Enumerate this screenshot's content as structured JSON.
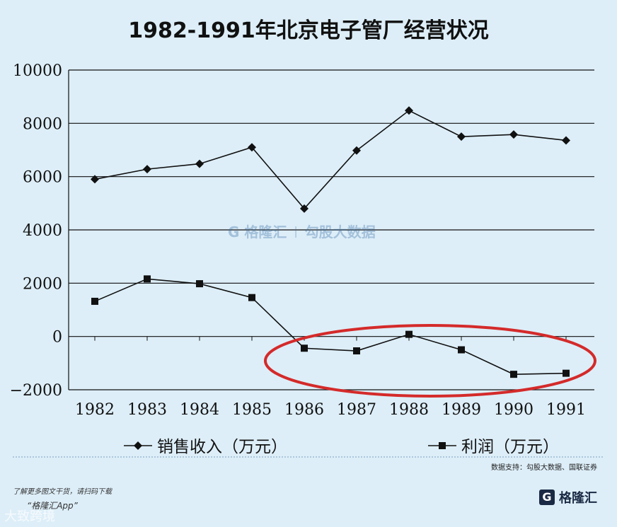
{
  "title": "1982-1991年北京电子管厂经营状况",
  "chart_data": {
    "type": "line",
    "categories": [
      "1982",
      "1983",
      "1984",
      "1985",
      "1986",
      "1987",
      "1988",
      "1989",
      "1990",
      "1991"
    ],
    "series": [
      {
        "name": "销售收入（万元）",
        "marker": "diamond",
        "values": [
          5900,
          6280,
          6480,
          7100,
          4800,
          6980,
          8480,
          7500,
          7580,
          7360
        ]
      },
      {
        "name": "利润（万元）",
        "marker": "square",
        "values": [
          1320,
          2160,
          1980,
          1460,
          -440,
          -540,
          80,
          -500,
          -1420,
          -1380
        ]
      }
    ],
    "yticks": [
      "10000",
      "8000",
      "6000",
      "4000",
      "2000",
      "0",
      "−2000"
    ],
    "ylim": [
      -2000,
      10000
    ],
    "grid": "horizontal",
    "legend_position": "bottom",
    "annotation": "red ellipse highlighting 1986–1991 profit"
  },
  "source_note": "数据支持：勾股大数据、国联证券",
  "footer_hint": "了解更多图文干货，请扫码下载",
  "footer_app": "“格隆汇App”",
  "brand_name": "格隆汇",
  "brand_mark": "G",
  "watermark_left": "G 格隆汇",
  "watermark_right": "勾股大数据",
  "corner_text": "大致跨境",
  "colors": {
    "background": "#ddeef8",
    "line": "#111111",
    "ellipse": "#d42a2a"
  }
}
